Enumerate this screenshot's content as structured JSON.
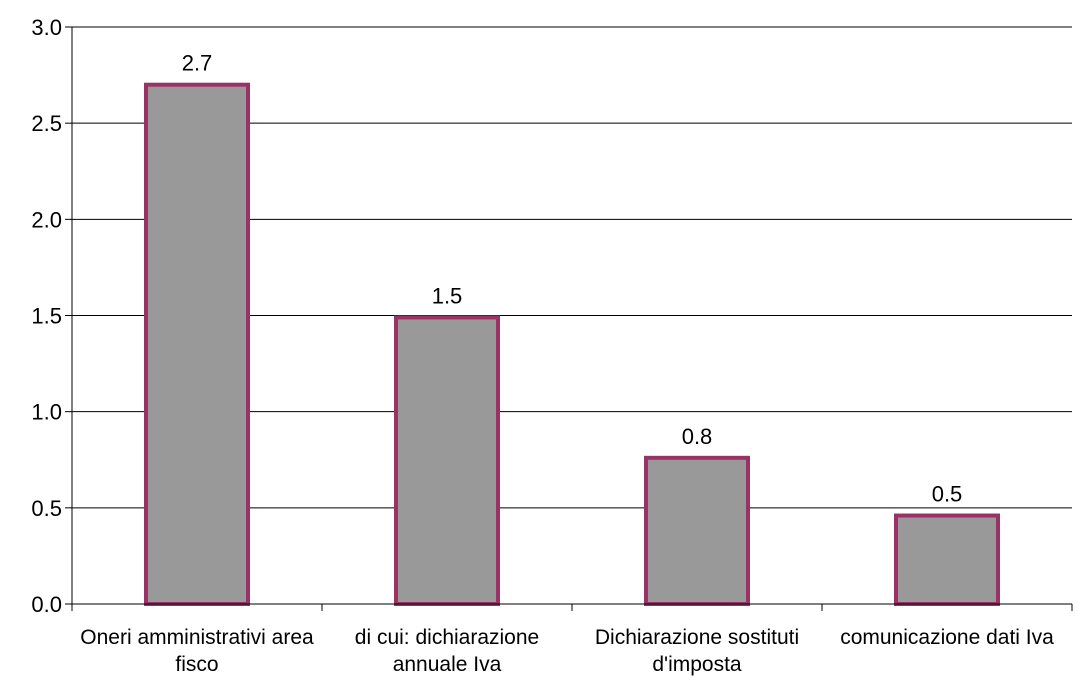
{
  "chart_data": {
    "type": "bar",
    "categories": [
      [
        "Oneri amministrativi area",
        "fisco"
      ],
      [
        "di cui: dichiarazione",
        "annuale Iva"
      ],
      [
        "Dichiarazione sostituti",
        "d'imposta"
      ],
      [
        "comunicazione dati Iva"
      ]
    ],
    "values": [
      2.7,
      1.5,
      0.8,
      0.5
    ],
    "plotted_values": [
      2.7,
      1.49,
      0.76,
      0.46
    ],
    "data_labels": [
      "2.7",
      "1.5",
      "0.8",
      "0.5"
    ],
    "title": "",
    "xlabel": "",
    "ylabel": "",
    "ylim": [
      0,
      3.0
    ],
    "yticks": [
      0.0,
      0.5,
      1.0,
      1.5,
      2.0,
      2.5,
      3.0
    ],
    "ytick_labels": [
      "0.0",
      "0.5",
      "1.0",
      "1.5",
      "2.0",
      "2.5",
      "3.0"
    ],
    "grid": true,
    "legend": "none",
    "colors": {
      "bar_fill": "#999999",
      "bar_stroke": "#993366",
      "grid": "#000000",
      "axis": "#000000"
    }
  }
}
